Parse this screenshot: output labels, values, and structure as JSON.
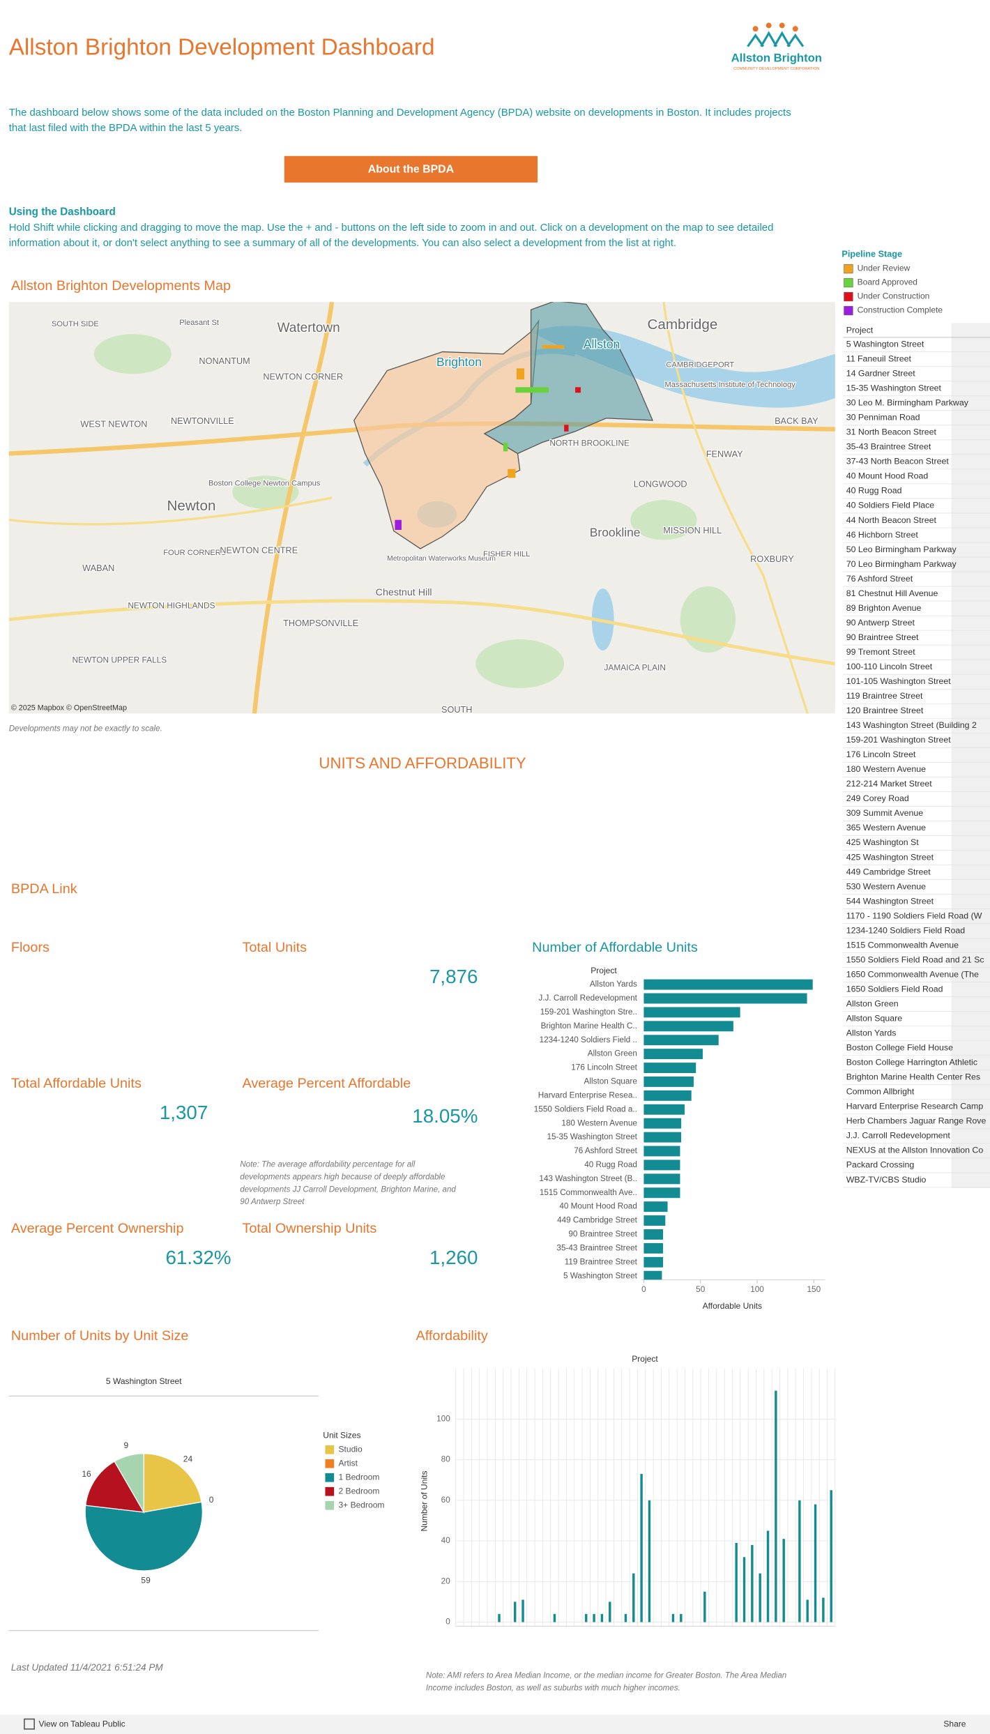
{
  "header": {
    "title": "Allston Brighton Development Dashboard",
    "logo_name": "Allston Brighton",
    "logo_tagline": "COMMUNITY DEVELOPMENT CORPORATION"
  },
  "intro": [
    "The dashboard below shows some of the data included on the Boston Planning and Development Agency (BPDA) website on developments in Boston. It includes projects",
    "that last filed with the BPDA within the last 5 years."
  ],
  "button": "About the BPDA",
  "usage": {
    "title": "Using the Dashboard",
    "lines": [
      "Hold Shift while clicking and dragging to move the map. Use the + and - buttons on the left side to zoom in and out. Click on a development on the map to see detailed",
      "information about it, or don't select anything to see a summary of all of the developments. You can also select a development from the list at right."
    ]
  },
  "legend": {
    "title": "Pipeline Stage",
    "items": [
      {
        "label": "Under Review",
        "color": "#f0a31c"
      },
      {
        "label": "Board Approved",
        "color": "#6ad23b"
      },
      {
        "label": "Under Construction",
        "color": "#e0101a"
      },
      {
        "label": "Construction Complete",
        "color": "#9b1de0"
      }
    ]
  },
  "projects": {
    "header": "Project",
    "items": [
      "5 Washington Street",
      "11 Faneuil Street",
      "14 Gardner Street",
      "15-35 Washington Street",
      "30 Leo M. Birmingham Parkway",
      "30 Penniman Road",
      "31 North Beacon Street",
      "35-43 Braintree Street",
      "37-43 North Beacon Street",
      "40 Mount Hood Road",
      "40 Rugg Road",
      "40 Soldiers Field Place",
      "44 North Beacon Street",
      "46 Hichborn Street",
      "50 Leo Birmingham Parkway",
      "70 Leo Birmingham Parkway",
      "76 Ashford Street",
      "81 Chestnut Hill Avenue",
      "89 Brighton Avenue",
      "90 Antwerp Street",
      "90 Braintree Street",
      "99 Tremont Street",
      "100-110 Lincoln Street",
      "101-105 Washington Street",
      "119 Braintree Street",
      "120 Braintree Street",
      "143 Washington Street (Building 2",
      "159-201 Washington Street",
      "176 Lincoln Street",
      "180 Western Avenue",
      "212-214 Market Street",
      "249 Corey Road",
      "309 Summit Avenue",
      "365 Western Avenue",
      "425 Washington St",
      "425 Washington Street",
      "449 Cambridge Street",
      "530 Western Avenue",
      "544 Washington Street",
      "1170 - 1190 Soldiers Field Road (W",
      "1234-1240 Soldiers Field Road",
      "1515 Commonwealth Avenue",
      "1550 Soldiers Field Road and 21 Sc",
      "1650 Commonwealth Avenue (The",
      "1650 Soldiers Field Road",
      "Allston Green",
      "Allston Square",
      "Allston Yards",
      "Boston College Field House",
      "Boston College Harrington Athletic",
      "Brighton Marine Health Center Res",
      "Common Allbright",
      "Harvard Enterprise Research Camp",
      "Herb Chambers Jaguar Range Rove",
      "J.J. Carroll Redevelopment",
      "NEXUS at the Allston Innovation Co",
      "Packard Crossing",
      "WBZ-TV/CBS Studio"
    ]
  },
  "map": {
    "title": "Allston Brighton Developments Map",
    "labels": [
      "SOUTH SIDE",
      "Pleasant St",
      "Watertown",
      "Cambridge",
      "NONANTUM",
      "NEWTON CORNER",
      "Brighton",
      "Allston",
      "CAMBRIDGEPORT",
      "Massachusetts Institute of Technology",
      "WEST NEWTON",
      "NEWTONVILLE",
      "BACK BAY",
      "NORTH BROOKLINE",
      "FENWAY",
      "LONGWOOD",
      "Boston College Newton Campus",
      "Newton",
      "MISSION HILL",
      "Brookline",
      "FOUR CORNERS",
      "NEWTON CENTRE",
      "WABAN",
      "Metropolitan Waterworks Museum",
      "FISHER HILL",
      "ROXBURY",
      "Chestnut Hill",
      "NEWTON HIGHLANDS",
      "THOMPSONVILLE",
      "NEWTON UPPER FALLS",
      "JAMAICA PLAIN",
      "SOUTH"
    ],
    "attribution": "© 2025 Mapbox © OpenStreetMap",
    "note": "Developments may not be exactly to scale."
  },
  "section": "UNITS AND AFFORDABILITY",
  "link": "BPDA Link",
  "kpis": [
    {
      "label": "Floors"
    },
    {
      "label": "Total Units",
      "value": "7,876"
    },
    {
      "label": "Total Affordable Units",
      "value": "1,307"
    },
    {
      "label": "Average Percent Affordable",
      "value": "18.05%"
    },
    {
      "label": "Average Percent Ownership",
      "value": "61.32%"
    },
    {
      "label": "Total Ownership Units",
      "value": "1,260"
    }
  ],
  "kpi_note": [
    "Note: The average affordability percentage for all",
    "developments appears high because of deeply affordable",
    "developments JJ Carroll Development, Brighton Marine, and",
    "90 Antwerp Street"
  ],
  "chart_data": [
    {
      "type": "hbar",
      "title": "Number of Affordable Units",
      "category_header": "Project",
      "x_label": "Affordable Units",
      "color": "#128b93",
      "categories": [
        "Allston Yards",
        "J.J. Carroll Redevelopment",
        "159-201 Washington Stre..",
        "Brighton Marine Health C..",
        "1234-1240 Soldiers Field ..",
        "Allston Green",
        "176 Lincoln Street",
        "Allston Square",
        "Harvard Enterprise Resea..",
        "1550 Soldiers Field Road a..",
        "180 Western Avenue",
        "15-35 Washington Street",
        "76 Ashford Street",
        "40 Rugg Road",
        "143 Washington Street (B..",
        "1515 Commonwealth Ave..",
        "40 Mount Hood Road",
        "449 Cambridge Street",
        "90 Braintree Street",
        "35-43 Braintree Street",
        "119 Braintree Street",
        "5 Washington Street"
      ],
      "values": [
        149,
        144,
        85,
        79,
        66,
        52,
        46,
        44,
        42,
        36,
        33,
        33,
        32,
        32,
        32,
        32,
        21,
        19,
        17,
        17,
        17,
        16
      ],
      "xlim": [
        0,
        160
      ],
      "xticks": [
        0,
        50,
        100,
        150
      ]
    },
    {
      "type": "pie",
      "title": "Number of Units by Unit Size",
      "subtitle": "5 Washington Street",
      "legend_title": "Unit Sizes",
      "categories": [
        "Studio",
        "Artist",
        "1 Bedroom",
        "2 Bedroom",
        "3+ Bedroom"
      ],
      "values": [
        24,
        0,
        59,
        16,
        9
      ],
      "colors": [
        "#e8c547",
        "#f07f23",
        "#128b93",
        "#b5111f",
        "#a5d4ae"
      ]
    },
    {
      "type": "column",
      "title": "Affordability",
      "x_label": "Project",
      "y_label": "Number of Units",
      "color": "#128b93",
      "grid": true,
      "values": [
        0,
        0,
        0,
        0,
        0,
        4,
        0,
        10,
        11,
        0,
        0,
        0,
        4,
        0,
        0,
        0,
        4,
        4,
        4,
        10,
        0,
        4,
        24,
        73,
        60,
        0,
        0,
        4,
        4,
        0,
        0,
        15,
        0,
        0,
        0,
        39,
        32,
        38,
        24,
        45,
        114,
        41,
        0,
        60,
        11,
        58,
        12,
        65
      ],
      "ylim": [
        -2,
        125
      ],
      "yticks": [
        0,
        20,
        40,
        60,
        80,
        100
      ]
    }
  ],
  "footer": {
    "updated": "Last Updated 11/4/2021 6:51:24 PM",
    "ami_note": [
      "Note: AMI refers to Area Median Income, or the median income for Greater Boston. The Area Median",
      "Income includes Boston, as well as suburbs with much higher incomes."
    ],
    "tableau": "View on Tableau Public",
    "share": "Share"
  }
}
